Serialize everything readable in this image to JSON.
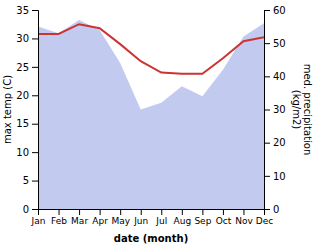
{
  "chart_data": {
    "type": "line",
    "categories": [
      "Jan",
      "Feb",
      "Mar",
      "Apr",
      "May",
      "Jun",
      "Jul",
      "Aug",
      "Sep",
      "Oct",
      "Nov",
      "Dec"
    ],
    "series": [
      {
        "type": "area",
        "axis": "y2",
        "color": "#aab4e8",
        "values": [
          55,
          53,
          57,
          54,
          44,
          30,
          32,
          37,
          34,
          42,
          52,
          56
        ]
      },
      {
        "type": "line",
        "color": "#cc3333",
        "values": [
          30.8,
          30.8,
          32.5,
          31.8,
          29.0,
          26.0,
          24.0,
          23.8,
          23.8,
          26.5,
          29.5,
          30.2
        ]
      }
    ],
    "xlabel": "date (month)",
    "ylabel": "max temp (C)",
    "y2label": "med. precipitation\n(kg/m2)",
    "ylim": [
      0,
      35
    ],
    "yticks": [
      0,
      5,
      10,
      15,
      20,
      25,
      30,
      35
    ],
    "y2lim": [
      0,
      60
    ],
    "y2ticks": [
      0,
      10,
      20,
      30,
      40,
      50,
      60
    ],
    "grid": false
  }
}
